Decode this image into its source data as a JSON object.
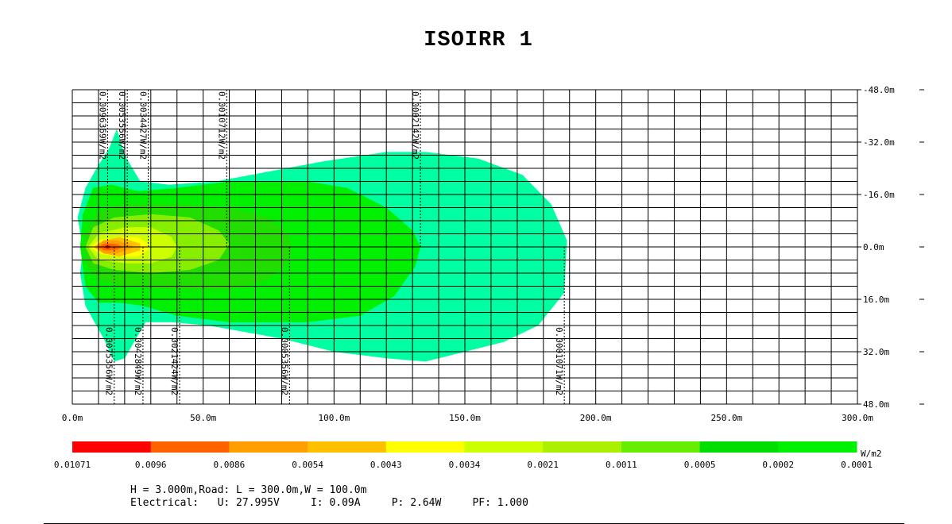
{
  "title": "ISOIRR 1",
  "chart_data": {
    "type": "heatmap",
    "title": "ISOIRR 1",
    "x_range_m": [
      0,
      300
    ],
    "y_range_m": [
      -48,
      48
    ],
    "x_ticks": [
      "0.0m",
      "50.0m",
      "100.0m",
      "150.0m",
      "200.0m",
      "250.0m",
      "300.0m"
    ],
    "y_ticks": [
      "48.0m",
      "32.0m",
      "16.0m",
      "0.0m",
      "16.0m",
      "32.0m",
      "48.0m"
    ],
    "grid": true,
    "unit": "W/m2",
    "legend": {
      "labels": [
        "0.01071",
        "0.0096",
        "0.0086",
        "0.0054",
        "0.0043",
        "0.0034",
        "0.0021",
        "0.0011",
        "0.0005",
        "0.0002",
        "0.0001"
      ],
      "colors": [
        "#ff0000",
        "#ff6200",
        "#ff9e00",
        "#ffc000",
        "#ffff00",
        "#ccff00",
        "#aaf000",
        "#66ee00",
        "#00dd00",
        "#00f000",
        "#00ffa0"
      ]
    },
    "contours_top": [
      {
        "label": "0.0096369W/m2",
        "x": 13.5
      },
      {
        "label": "0.0053556W/m2",
        "x": 21.0
      },
      {
        "label": "0.0034427W/m2",
        "x": 29.0
      },
      {
        "label": "0.0010712W/m2",
        "x": 59.0
      },
      {
        "label": "0.0002142W/m2",
        "x": 133.0
      }
    ],
    "contours_bottom": [
      {
        "label": "0.0075356W/m2",
        "x": 16.0
      },
      {
        "label": "0.0042849W/m2",
        "x": 27.0
      },
      {
        "label": "0.0021424W/m2",
        "x": 41.0
      },
      {
        "label": "0.0005356W/m2",
        "x": 83.0
      },
      {
        "label": "0.0001071W/m2",
        "x": 188.0
      }
    ],
    "regions": [
      {
        "level": "0.0001",
        "color": "#00ffa0",
        "polygon": [
          [
            4,
            0
          ],
          [
            2,
            -9
          ],
          [
            5,
            -18
          ],
          [
            10,
            -25
          ],
          [
            14,
            -30
          ],
          [
            17,
            -36
          ],
          [
            20,
            -28
          ],
          [
            26,
            -20
          ],
          [
            37,
            -19
          ],
          [
            55,
            -20
          ],
          [
            75,
            -23
          ],
          [
            95,
            -26
          ],
          [
            120,
            -29
          ],
          [
            135,
            -29
          ],
          [
            155,
            -27
          ],
          [
            172,
            -22
          ],
          [
            183,
            -13
          ],
          [
            189,
            -2
          ],
          [
            188,
            14
          ],
          [
            178,
            24
          ],
          [
            165,
            29
          ],
          [
            135,
            35
          ],
          [
            120,
            34
          ],
          [
            100,
            32
          ],
          [
            80,
            28
          ],
          [
            52,
            24
          ],
          [
            38,
            23
          ],
          [
            28,
            23
          ],
          [
            20,
            34
          ],
          [
            16,
            35
          ],
          [
            12,
            28
          ],
          [
            5,
            18
          ],
          [
            3,
            8
          ]
        ]
      },
      {
        "level": "0.0002",
        "color": "#00f000",
        "polygon": [
          [
            3,
            0
          ],
          [
            4,
            -10
          ],
          [
            8,
            -18
          ],
          [
            15,
            -19
          ],
          [
            25,
            -17
          ],
          [
            40,
            -18
          ],
          [
            60,
            -20
          ],
          [
            90,
            -20
          ],
          [
            105,
            -18
          ],
          [
            120,
            -12
          ],
          [
            130,
            -5
          ],
          [
            133,
            0
          ],
          [
            131,
            6
          ],
          [
            123,
            15
          ],
          [
            110,
            21
          ],
          [
            90,
            23
          ],
          [
            60,
            23
          ],
          [
            40,
            21
          ],
          [
            27,
            18
          ],
          [
            18,
            17
          ],
          [
            10,
            17
          ],
          [
            5,
            12
          ]
        ]
      },
      {
        "level": "0.0005",
        "color": "#22dd00",
        "polygon": [
          [
            4,
            0
          ],
          [
            6,
            -6
          ],
          [
            10,
            -11
          ],
          [
            20,
            -13
          ],
          [
            40,
            -13
          ],
          [
            60,
            -12
          ],
          [
            75,
            -9
          ],
          [
            82,
            -4
          ],
          [
            84,
            0
          ],
          [
            82,
            5
          ],
          [
            75,
            10
          ],
          [
            60,
            13
          ],
          [
            40,
            13
          ],
          [
            20,
            12
          ],
          [
            10,
            10
          ],
          [
            6,
            6
          ]
        ]
      },
      {
        "level": "0.0011",
        "color": "#88ee00",
        "polygon": [
          [
            5,
            0
          ],
          [
            8,
            -6
          ],
          [
            16,
            -9
          ],
          [
            30,
            -10
          ],
          [
            45,
            -9
          ],
          [
            56,
            -5
          ],
          [
            60,
            -1
          ],
          [
            56,
            4
          ],
          [
            45,
            7
          ],
          [
            30,
            8
          ],
          [
            16,
            7
          ],
          [
            8,
            5
          ]
        ]
      },
      {
        "level": "0.0021",
        "color": "#ccff00",
        "polygon": [
          [
            6,
            0
          ],
          [
            10,
            -4
          ],
          [
            20,
            -6
          ],
          [
            30,
            -6
          ],
          [
            38,
            -3
          ],
          [
            40,
            0
          ],
          [
            38,
            3
          ],
          [
            30,
            5
          ],
          [
            20,
            5
          ],
          [
            10,
            4
          ]
        ]
      },
      {
        "level": "0.0034",
        "color": "#ffff00",
        "polygon": [
          [
            7,
            0
          ],
          [
            10,
            -2
          ],
          [
            18,
            -3
          ],
          [
            25,
            -3
          ],
          [
            29,
            -1
          ],
          [
            29,
            1
          ],
          [
            25,
            3
          ],
          [
            18,
            3
          ],
          [
            10,
            2
          ]
        ]
      },
      {
        "level": "0.0054",
        "color": "#ffc000",
        "polygon": [
          [
            8,
            0
          ],
          [
            12,
            -2
          ],
          [
            18,
            -3
          ],
          [
            26,
            -1
          ],
          [
            26,
            1
          ],
          [
            18,
            3
          ],
          [
            12,
            2
          ]
        ]
      },
      {
        "level": "0.0086",
        "color": "#ff9e00",
        "polygon": [
          [
            9,
            0
          ],
          [
            12,
            -2
          ],
          [
            17,
            -2
          ],
          [
            24,
            0
          ],
          [
            17,
            2
          ],
          [
            12,
            2
          ]
        ]
      },
      {
        "level": "0.0096",
        "color": "#ff6200",
        "polygon": [
          [
            10,
            0
          ],
          [
            12,
            -1
          ],
          [
            16,
            -1
          ],
          [
            20,
            0
          ],
          [
            16,
            1
          ],
          [
            12,
            1
          ]
        ]
      },
      {
        "level": "0.01071",
        "color": "#ee1100",
        "polygon": [
          [
            12,
            0
          ],
          [
            13.5,
            -0.6
          ],
          [
            15,
            0
          ],
          [
            13.5,
            0.6
          ]
        ]
      }
    ]
  },
  "info": {
    "line1": "H = 3.000m,Road: L = 300.0m,W = 100.0m",
    "line2": "Electrical:   U: 27.995V     I: 0.09A     P: 2.64W     PF: 1.000"
  }
}
